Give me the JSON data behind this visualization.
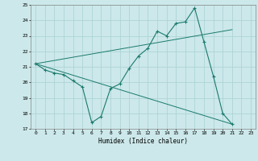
{
  "xlabel": "Humidex (Indice chaleur)",
  "ylabel": "",
  "bg_color": "#cce8ea",
  "grid_color": "#aed4d6",
  "line_color": "#1a7a6e",
  "xlim": [
    -0.5,
    23.5
  ],
  "ylim": [
    17,
    25
  ],
  "xticks": [
    0,
    1,
    2,
    3,
    4,
    5,
    6,
    7,
    8,
    9,
    10,
    11,
    12,
    13,
    14,
    15,
    16,
    17,
    18,
    19,
    20,
    21,
    22,
    23
  ],
  "yticks": [
    17,
    18,
    19,
    20,
    21,
    22,
    23,
    24,
    25
  ],
  "line1_x": [
    0,
    1,
    2,
    3,
    4,
    5,
    6,
    7,
    8,
    9,
    10,
    11,
    12,
    13,
    14,
    15,
    16,
    17,
    18,
    19,
    20,
    21
  ],
  "line1_y": [
    21.2,
    20.8,
    20.6,
    20.5,
    20.1,
    19.7,
    17.4,
    17.8,
    19.6,
    19.9,
    20.9,
    21.7,
    22.2,
    23.3,
    23.0,
    23.8,
    23.9,
    24.8,
    22.6,
    20.4,
    18.0,
    17.3
  ],
  "line2_x": [
    0,
    21
  ],
  "line2_y": [
    21.2,
    23.4
  ],
  "line3_x": [
    0,
    21
  ],
  "line3_y": [
    21.2,
    17.3
  ]
}
